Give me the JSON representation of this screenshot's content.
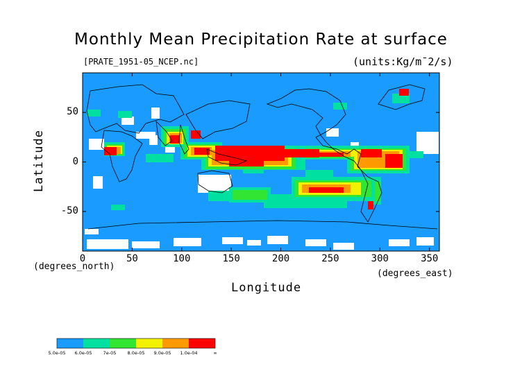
{
  "title": "Monthly Mean Precipitation Rate at surface",
  "file_label": "[PRATE_1951-05_NCEP.nc]",
  "units_label": "(units:Kg/m¯2/s)",
  "colors": {
    "ocean_bg": "#1a9bff",
    "c1": "#1a9bff",
    "c2": "#00e0a0",
    "c3": "#33e533",
    "c4": "#f2f200",
    "c5": "#ff9900",
    "c6": "#ff0000",
    "missing": "#ffffff"
  },
  "chart_data": {
    "type": "heatmap",
    "title": "Monthly Mean Precipitation Rate at surface",
    "subtitle": "[PRATE_1951-05_NCEP.nc]",
    "units": "(units:Kg/m¯2/s)",
    "xlabel": "Longitude",
    "ylabel": "Latitude",
    "x_unit_label": "(degrees_east)",
    "y_unit_label": "(degrees_north)",
    "xlim": [
      0,
      360
    ],
    "ylim": [
      -90,
      90
    ],
    "x_ticks": [
      0,
      50,
      100,
      150,
      200,
      250,
      300,
      350
    ],
    "y_ticks": [
      50,
      0,
      -50
    ],
    "colorbar": {
      "labels": [
        "5.0e-05",
        "6.0e-05",
        "7e-05",
        "8.0e-05",
        "9.0e-05",
        "1.0e-04",
        "∞"
      ],
      "colors": [
        "#1a9bff",
        "#00e0a0",
        "#33e533",
        "#f2f200",
        "#ff9900",
        "#ff0000"
      ]
    }
  }
}
